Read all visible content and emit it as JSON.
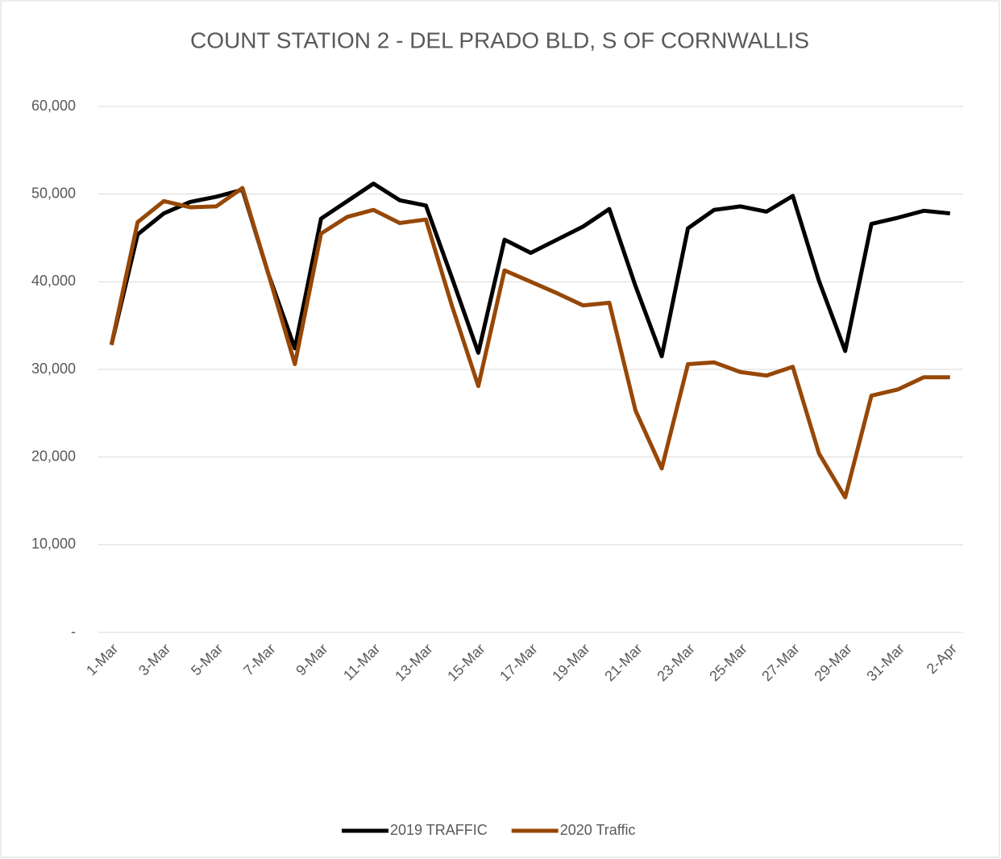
{
  "chart_data": {
    "type": "line",
    "title": "COUNT STATION 2 - DEL PRADO BLD, S OF CORNWALLIS",
    "categories": [
      "1-Mar",
      null,
      "3-Mar",
      null,
      "5-Mar",
      null,
      "7-Mar",
      null,
      "9-Mar",
      null,
      "11-Mar",
      null,
      "13-Mar",
      null,
      "15-Mar",
      null,
      "17-Mar",
      null,
      "19-Mar",
      null,
      "21-Mar",
      null,
      "23-Mar",
      null,
      "25-Mar",
      null,
      "27-Mar",
      null,
      "29-Mar",
      null,
      "31-Mar",
      null,
      "2-Apr"
    ],
    "series": [
      {
        "name": "2019 TRAFFIC",
        "color": "#000000",
        "values": [
          32800,
          45400,
          47800,
          49100,
          49700,
          50500,
          40800,
          32400,
          47200,
          49200,
          51200,
          49300,
          48700,
          40400,
          31900,
          44800,
          43300,
          44800,
          46300,
          48300,
          39500,
          31500,
          46100,
          48200,
          48600,
          48000,
          49800,
          40100,
          32100,
          46600,
          47300,
          48100,
          47800
        ]
      },
      {
        "name": "2020 Traffic",
        "color": "#974706",
        "values": [
          32800,
          46800,
          49200,
          48500,
          48600,
          50700,
          40800,
          30600,
          45500,
          47400,
          48200,
          46700,
          47100,
          37200,
          28100,
          41300,
          40000,
          38700,
          37300,
          37600,
          25300,
          18700,
          30600,
          30800,
          29700,
          29300,
          30300,
          20400,
          15400,
          27000,
          27700,
          29100,
          29100
        ]
      }
    ],
    "ylim": [
      0,
      60000
    ],
    "yticks": [
      {
        "value": 0,
        "label": "-"
      },
      {
        "value": 10000,
        "label": "10,000"
      },
      {
        "value": 20000,
        "label": "20,000"
      },
      {
        "value": 30000,
        "label": "30,000"
      },
      {
        "value": 40000,
        "label": "40,000"
      },
      {
        "value": 50000,
        "label": "50,000"
      },
      {
        "value": 60000,
        "label": "60,000"
      }
    ],
    "grid": true,
    "legend": "bottom"
  }
}
